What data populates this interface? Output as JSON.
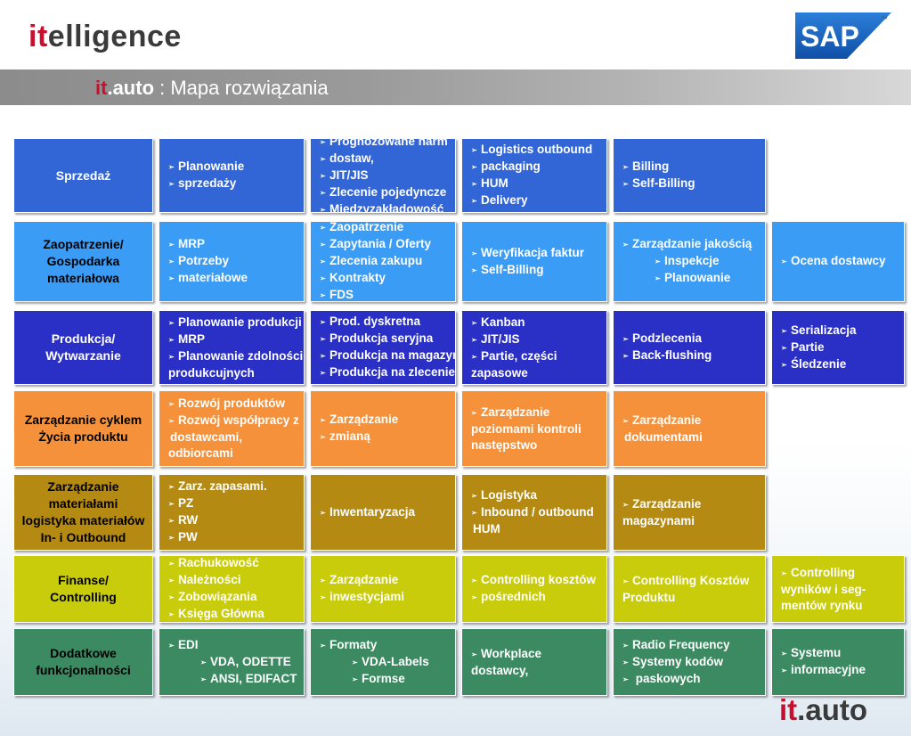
{
  "header": {
    "logo_left_accent": "it",
    "logo_left_rest": "elligence",
    "sap_text": "SAP",
    "tm": "™",
    "title_accent": "it",
    "title_brand": ".auto",
    "title_rest": " : Mapa rozwiązania"
  },
  "colors": {
    "row0": "#3266d6",
    "row1": "#3b9cf6",
    "row2": "#2a2fc6",
    "row3": "#f5913a",
    "row4": "#b58a12",
    "row5": "#c8cc0a",
    "row6": "#3b8a62"
  },
  "rows": [
    {
      "category": [
        "Sprzedaż"
      ],
      "cells": [
        [
          {
            "t": "Planowanie",
            "a": true
          },
          {
            "t": "sprzedaży",
            "a": true
          }
        ],
        [
          {
            "t": "Prognozowane harm",
            "a": true
          },
          {
            "t": "dostaw,",
            "a": true
          },
          {
            "t": "JIT/JIS",
            "a": true
          },
          {
            "t": "Zlecenie pojedyncze",
            "a": true
          },
          {
            "t": "Międzyzakładowość",
            "a": true
          }
        ],
        [
          {
            "t": "Logistics outbound",
            "a": true
          },
          {
            "t": "packaging",
            "a": true
          },
          {
            "t": "HUM",
            "a": true
          },
          {
            "t": "Delivery",
            "a": true
          }
        ],
        [
          {
            "t": "Billing",
            "a": true
          },
          {
            "t": "Self-Billing",
            "a": true
          }
        ]
      ]
    },
    {
      "category": [
        "Zaopatrzenie/",
        "Gospodarka",
        "materiałowa"
      ],
      "cells": [
        [
          {
            "t": "MRP",
            "a": true
          },
          {
            "t": "Potrzeby",
            "a": true
          },
          {
            "t": "materiałowe",
            "a": true
          }
        ],
        [
          {
            "t": "Zaopatrzenie",
            "a": true
          },
          {
            "t": "Zapytania / Oferty",
            "a": true
          },
          {
            "t": "Zlecenia zakupu",
            "a": true
          },
          {
            "t": "Kontrakty",
            "a": true
          },
          {
            "t": "FDS",
            "a": true
          }
        ],
        [
          {
            "t": "Weryfikacja faktur",
            "a": true
          },
          {
            "t": "Self-Billing",
            "a": true
          }
        ],
        [
          {
            "t": "Zarządzanie jakością",
            "a": true
          },
          {
            "t": "Inspekcje",
            "a": true,
            "i": true
          },
          {
            "t": "Planowanie",
            "a": true,
            "i": true
          }
        ],
        [
          {
            "t": "Ocena dostawcy",
            "a": true
          }
        ]
      ]
    },
    {
      "category": [
        "Produkcja/",
        "Wytwarzanie"
      ],
      "cells": [
        [
          {
            "t": "Planowanie produkcji",
            "a": true
          },
          {
            "t": "MRP",
            "a": true
          },
          {
            "t": "Planowanie zdolności",
            "a": true
          },
          {
            "t": "produkcujnych",
            "a": false
          }
        ],
        [
          {
            "t": "Prod. dyskretna",
            "a": true
          },
          {
            "t": "Produkcja seryjna",
            "a": true
          },
          {
            "t": "Produkcja na magazyn",
            "a": true
          },
          {
            "t": "Produkcja na zlecenie",
            "a": true
          }
        ],
        [
          {
            "t": "Kanban",
            "a": true
          },
          {
            "t": "JIT/JIS",
            "a": true
          },
          {
            "t": "Partie, części",
            "a": true
          },
          {
            "t": "zapasowe",
            "a": false
          }
        ],
        [
          {
            "t": "Podzlecenia",
            "a": true
          },
          {
            "t": "Back-flushing",
            "a": true
          }
        ],
        [
          {
            "t": "Serializacja",
            "a": true
          },
          {
            "t": "Partie",
            "a": true
          },
          {
            "t": "Śledzenie",
            "a": true
          }
        ]
      ]
    },
    {
      "category": [
        "Zarządzanie cyklem",
        "Życia produktu"
      ],
      "cells": [
        [
          {
            "t": "Rozwój produktów",
            "a": true
          },
          {
            "t": "Rozwój współpracy z",
            "a": true
          },
          {
            "t": "dostawcami,",
            "a": false,
            "c": true
          },
          {
            "t": "odbiorcami",
            "a": false
          }
        ],
        [
          {
            "t": "Zarządzanie",
            "a": true
          },
          {
            "t": "zmianą",
            "a": true
          }
        ],
        [
          {
            "t": "Zarządzanie",
            "a": true
          },
          {
            "t": "poziomami kontroli",
            "a": false
          },
          {
            "t": "następstwo",
            "a": false
          }
        ],
        [
          {
            "t": "Zarządzanie",
            "a": true
          },
          {
            "t": "dokumentami",
            "a": false,
            "c": true
          }
        ]
      ]
    },
    {
      "category": [
        "Zarządzanie",
        "materiałami",
        "logistyka materiałów",
        "In- i Outbound"
      ],
      "cells": [
        [
          {
            "t": "Zarz. zapasami.",
            "a": true
          },
          {
            "t": "PZ",
            "a": true
          },
          {
            "t": "RW",
            "a": true
          },
          {
            "t": "PW",
            "a": true
          }
        ],
        [
          {
            "t": "Inwentaryzacja",
            "a": true
          }
        ],
        [
          {
            "t": "Logistyka",
            "a": true
          },
          {
            "t": "Inbound / outbound",
            "a": true
          },
          {
            "t": "HUM",
            "a": false,
            "c": true
          }
        ],
        [
          {
            "t": "Zarządzanie",
            "a": true
          },
          {
            "t": "magazynami",
            "a": false
          }
        ]
      ]
    },
    {
      "category": [
        "Finanse/",
        "Controlling"
      ],
      "cells": [
        [
          {
            "t": "Rachukowość",
            "a": true
          },
          {
            "t": "Należności",
            "a": true
          },
          {
            "t": "Zobowiązania",
            "a": true
          },
          {
            "t": "Księga Główna",
            "a": true
          }
        ],
        [
          {
            "t": "Zarządzanie",
            "a": true
          },
          {
            "t": "inwestycjami",
            "a": true
          }
        ],
        [
          {
            "t": "Controlling kosztów",
            "a": true
          },
          {
            "t": "pośrednich",
            "a": true
          }
        ],
        [
          {
            "t": "Controlling Kosztów",
            "a": true
          },
          {
            "t": "Produktu",
            "a": false
          }
        ],
        [
          {
            "t": "Controlling",
            "a": true
          },
          {
            "t": "wyników  i seg-",
            "a": false
          },
          {
            "t": "mentów rynku",
            "a": false
          }
        ]
      ]
    },
    {
      "category": [
        "Dodatkowe",
        "funkcjonalności"
      ],
      "cells": [
        [
          {
            "t": "EDI",
            "a": true
          },
          {
            "t": "VDA, ODETTE",
            "a": true,
            "i": true
          },
          {
            "t": "ANSI, EDIFACT",
            "a": true,
            "i": true
          }
        ],
        [
          {
            "t": "Formaty",
            "a": true
          },
          {
            "t": "VDA-Labels",
            "a": true,
            "i": true
          },
          {
            "t": "Formse",
            "a": true,
            "i": true
          }
        ],
        [
          {
            "t": "Workplace",
            "a": true
          },
          {
            "t": "dostawcy,",
            "a": false
          }
        ],
        [
          {
            "t": "Radio Frequency",
            "a": true
          },
          {
            "t": "Systemy kodów",
            "a": true
          },
          {
            "t": " paskowych",
            "a": true
          }
        ],
        [
          {
            "t": "Systemu",
            "a": true
          },
          {
            "t": "informacyjne",
            "a": true
          }
        ]
      ]
    }
  ],
  "footer": {
    "logo_accent": "it",
    "logo_rest": ".auto"
  }
}
